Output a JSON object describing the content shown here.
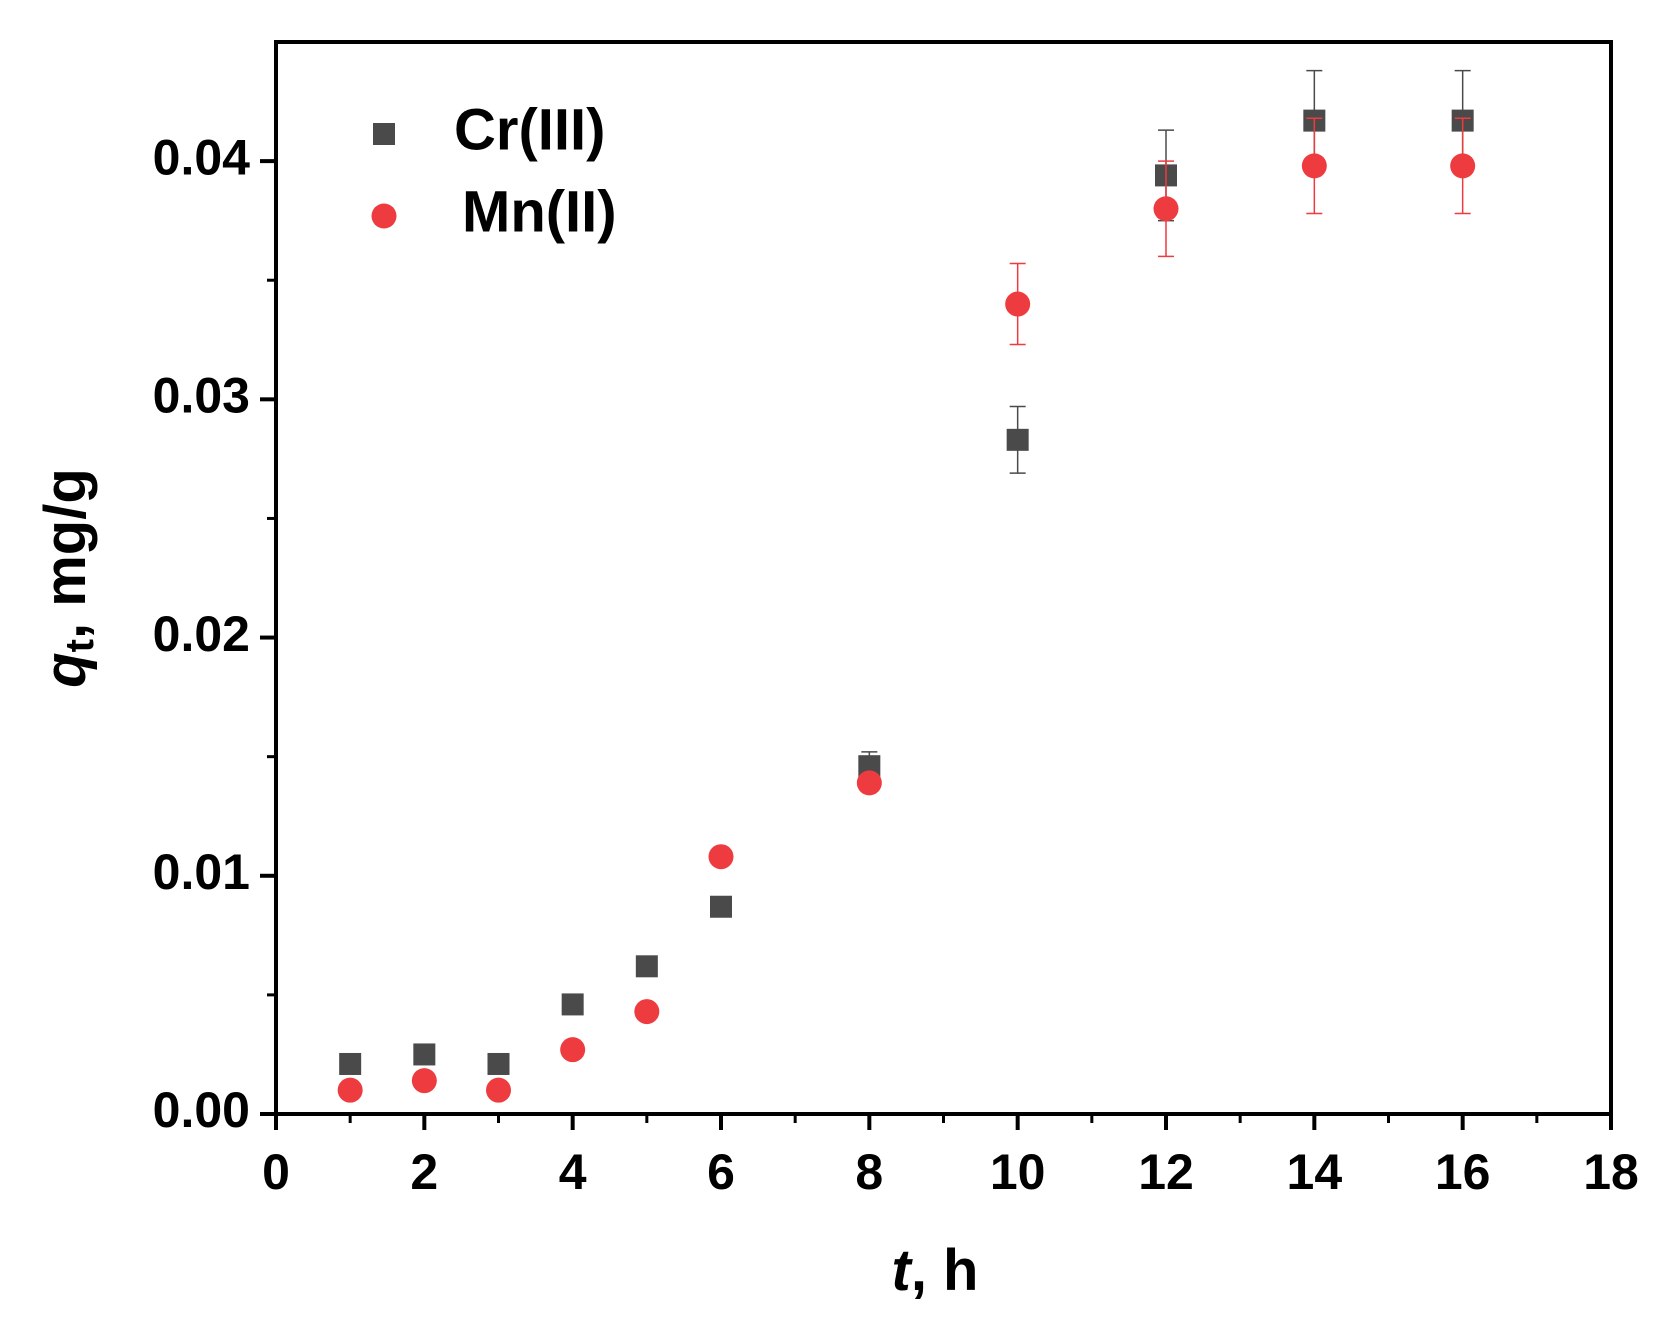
{
  "chart_data": {
    "type": "scatter",
    "xlabel": {
      "symbol": "t",
      "unit": ", h"
    },
    "ylabel": {
      "symbol": "q",
      "subscript": "t",
      "unit": ", mg/g"
    },
    "xlim": [
      0,
      18
    ],
    "xticks": [
      0,
      2,
      4,
      6,
      8,
      10,
      12,
      14,
      16,
      18
    ],
    "ylim": [
      0,
      0.045
    ],
    "yticks": [
      {
        "value": 0,
        "label": "0.00"
      },
      0.01,
      0.02,
      0.03,
      0.04
    ],
    "legend": "upper-left",
    "series": [
      {
        "name": "Cr(III)",
        "color": "#4a4a4a",
        "marker": "square",
        "x": [
          1,
          2,
          3,
          4,
          5,
          6,
          8,
          10,
          12,
          14,
          16
        ],
        "values": [
          0.0021,
          0.0025,
          0.0021,
          0.0046,
          0.0062,
          0.0087,
          0.0146,
          0.0283,
          0.0394,
          0.0417,
          0.0417
        ],
        "errors": [
          0.0002,
          0.0002,
          0.0002,
          0.0002,
          0.0002,
          0.0002,
          0.0006,
          0.0014,
          0.0019,
          0.0021,
          0.0021
        ]
      },
      {
        "name": "Mn(II)",
        "color": "#ee3b3f",
        "marker": "circle",
        "x": [
          1,
          2,
          3,
          4,
          5,
          6,
          8,
          10,
          12,
          14,
          16
        ],
        "values": [
          0.001,
          0.0014,
          0.001,
          0.0027,
          0.0043,
          0.0108,
          0.0139,
          0.034,
          0.038,
          0.0398,
          0.0398
        ],
        "errors": [
          0.0002,
          0.0002,
          0.0002,
          0.0002,
          0.0002,
          0.0003,
          0.0003,
          0.0017,
          0.002,
          0.002,
          0.002
        ]
      }
    ]
  }
}
